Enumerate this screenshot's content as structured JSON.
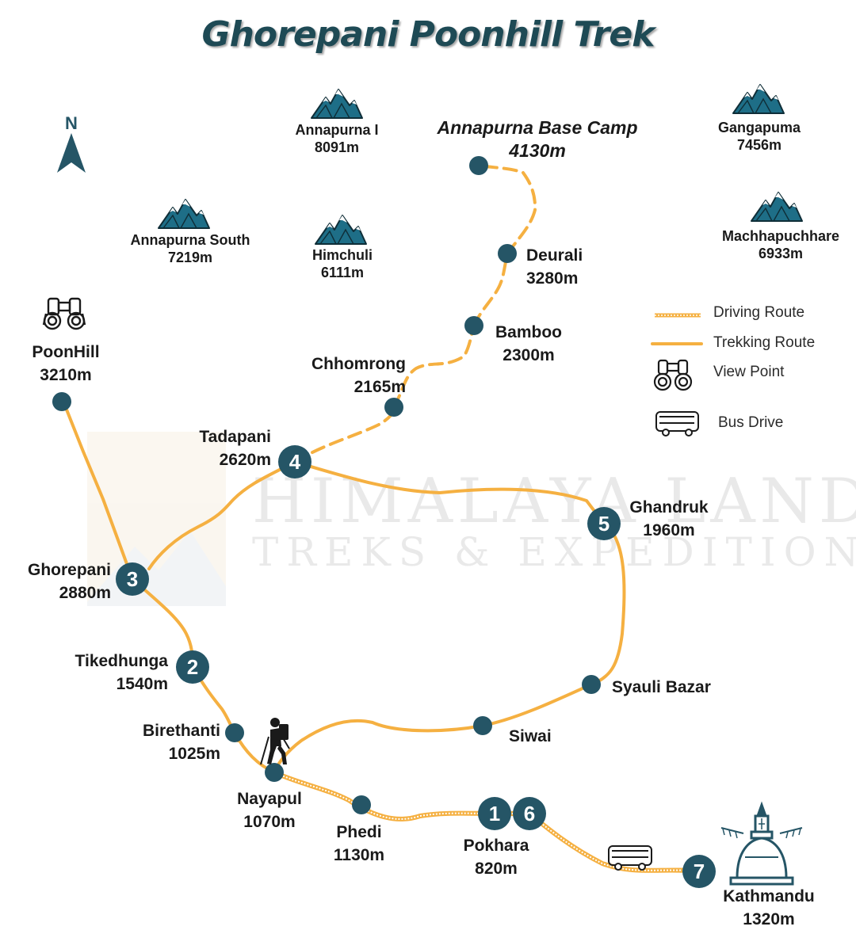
{
  "title": "Ghorepani Poonhill Trek",
  "compass": "N",
  "watermark": {
    "line1": "HIMALAYA LAND",
    "line2": "TREKS & EXPEDITION"
  },
  "colors": {
    "route": "#f5b041",
    "node": "#255566",
    "mountain": "#1e6e87",
    "title": "#1e4a55"
  },
  "peaks": {
    "annapurna_1": {
      "name": "Annapurna I",
      "alt": "8091m"
    },
    "gangapurna": {
      "name": "Gangapuma",
      "alt": "7456m"
    },
    "annapurna_south": {
      "name": "Annapurna South",
      "alt": "7219m"
    },
    "himchuli": {
      "name": "Himchuli",
      "alt": "6111m"
    },
    "machhapuchhare": {
      "name": "Machhapuchhare",
      "alt": "6933m"
    }
  },
  "places": {
    "abc": {
      "name": "Annapurna Base Camp",
      "alt": "4130m"
    },
    "deurali": {
      "name": "Deurali",
      "alt": "3280m"
    },
    "bamboo": {
      "name": "Bamboo",
      "alt": "2300m"
    },
    "chhomrong": {
      "name": "Chhomrong",
      "alt": "2165m"
    },
    "poonhill": {
      "name": "PoonHill",
      "alt": "3210m"
    },
    "tadapani": {
      "name": "Tadapani",
      "alt": "2620m",
      "day": "4"
    },
    "ghandruk": {
      "name": "Ghandruk",
      "alt": "1960m",
      "day": "5"
    },
    "ghorepani": {
      "name": "Ghorepani",
      "alt": "2880m",
      "day": "3"
    },
    "tikedhunga": {
      "name": "Tikedhunga",
      "alt": "1540m",
      "day": "2"
    },
    "birethanti": {
      "name": "Birethanti",
      "alt": "1025m"
    },
    "syauli": {
      "name": "Syauli Bazar"
    },
    "siwai": {
      "name": "Siwai"
    },
    "nayapul": {
      "name": "Nayapul",
      "alt": "1070m"
    },
    "phedi": {
      "name": "Phedi",
      "alt": "1130m"
    },
    "pokhara": {
      "name": "Pokhara",
      "alt": "820m",
      "day_a": "1",
      "day_b": "6"
    },
    "kathmandu": {
      "name": "Kathmandu",
      "alt": "1320m",
      "day": "7"
    }
  },
  "legend": {
    "driving": "Driving Route",
    "trekking": "Trekking Route",
    "viewpoint": "View Point",
    "bus": "Bus Drive"
  }
}
